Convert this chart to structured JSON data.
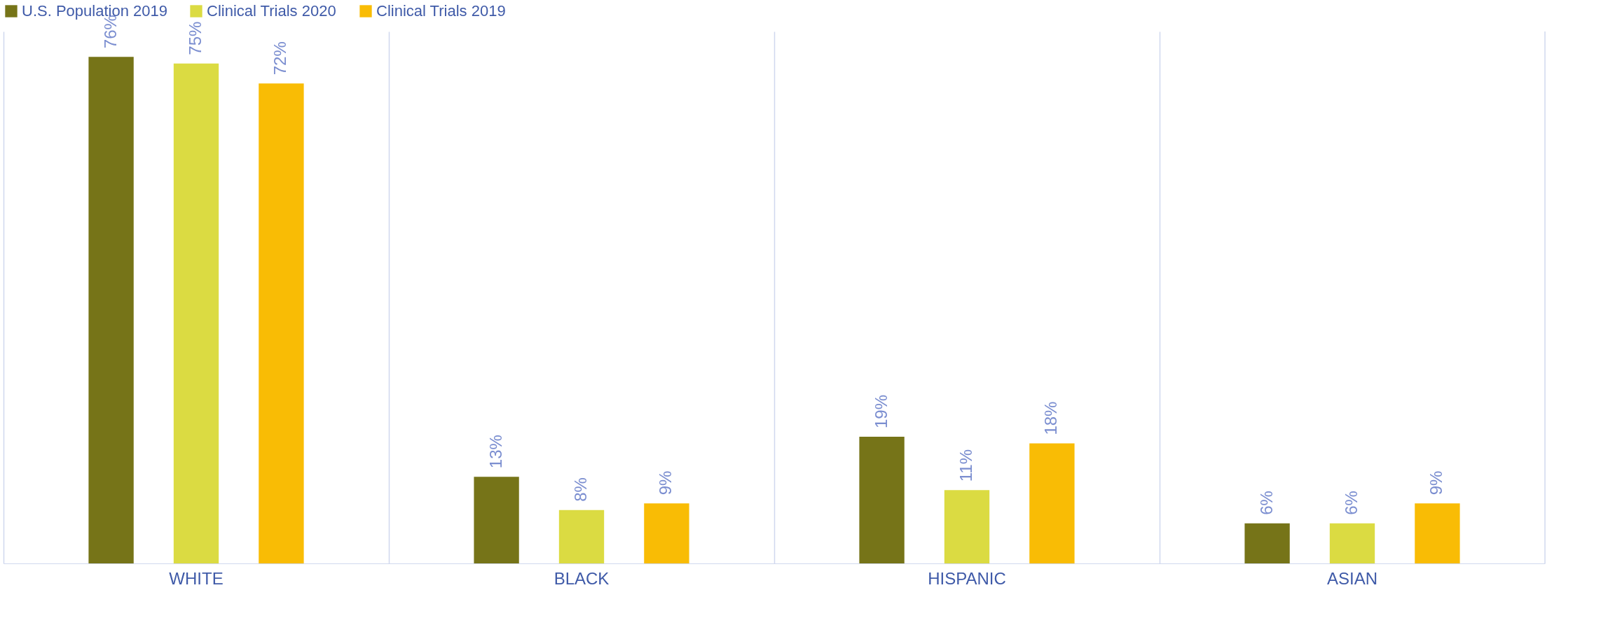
{
  "chart_data": {
    "type": "bar",
    "categories": [
      "WHITE",
      "BLACK",
      "HISPANIC",
      "ASIAN"
    ],
    "series": [
      {
        "name": "U.S. Population 2019",
        "color": "#767418",
        "values": [
          76,
          13,
          19,
          6
        ],
        "value_labels": [
          "76%",
          "13%",
          "19%",
          "6%"
        ]
      },
      {
        "name": "Clinical Trials 2020",
        "color": "#dbdb42",
        "values": [
          75,
          8,
          11,
          6
        ],
        "value_labels": [
          "75%",
          "8%",
          "11%",
          "6%"
        ]
      },
      {
        "name": "Clinical Trials 2019",
        "color": "#f9bc05",
        "values": [
          72,
          9,
          18,
          9
        ],
        "value_labels": [
          "72%",
          "9%",
          "18%",
          "9%"
        ]
      }
    ],
    "grid": "x",
    "legend": "top"
  }
}
